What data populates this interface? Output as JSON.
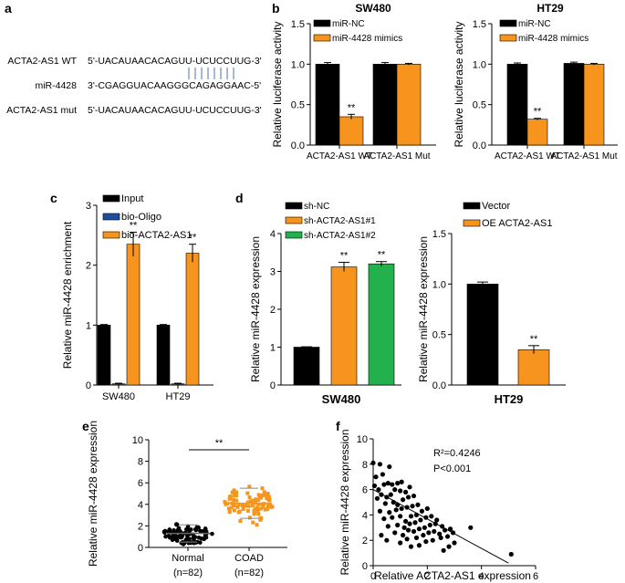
{
  "panels": {
    "a": {
      "letter": "a",
      "rows": [
        {
          "label": "ACTA2-AS1 WT",
          "seq": "5'-UACAUAACACAGUU-UCUCCUUG-3'"
        },
        {
          "label": "miR-4428",
          "seq": "3'-CGAGGUACAAGGGCAGAGGAAC-5'"
        },
        {
          "label": "ACTA2-AS1 mut",
          "seq": "5'-UACAUAACACAGUU-UCUCCUUG-3'"
        }
      ]
    },
    "b": {
      "letter": "b"
    },
    "c": {
      "letter": "c"
    },
    "d": {
      "letter": "d"
    },
    "e": {
      "letter": "e"
    },
    "f": {
      "letter": "f"
    }
  },
  "colors": {
    "black": "#000000",
    "orange": "#f7941d",
    "blue": "#1f4e9c",
    "green": "#22b14c"
  },
  "chart_data": [
    {
      "id": "b1",
      "type": "bar",
      "title": "SW480",
      "ylabel": "Relative luciferase activity",
      "ylim": [
        0,
        1.5
      ],
      "yticks": [
        "0.0",
        "0.5",
        "1.0",
        "1.5"
      ],
      "categories": [
        "ACTA2-AS1 WT",
        "ACTA2-AS1 Mut"
      ],
      "legend": "top-left",
      "series": [
        {
          "name": "miR-NC",
          "color": "#000000",
          "values": [
            1.0,
            1.0
          ],
          "errors": [
            0.02,
            0.02
          ]
        },
        {
          "name": "miR-4428 mimics",
          "color": "#f7941d",
          "values": [
            0.35,
            1.0
          ],
          "errors": [
            0.03,
            0.01
          ]
        }
      ],
      "annotations": [
        {
          "category": 0,
          "series": 1,
          "text": "**"
        }
      ]
    },
    {
      "id": "b2",
      "type": "bar",
      "title": "HT29",
      "ylabel": "Relative luciferase activity",
      "ylim": [
        0,
        1.5
      ],
      "yticks": [
        "0.0",
        "0.5",
        "1.0",
        "1.5"
      ],
      "categories": [
        "ACTA2-AS1 WT",
        "ACTA2-AS1 Mut"
      ],
      "legend": "top-left",
      "series": [
        {
          "name": "miR-NC",
          "color": "#000000",
          "values": [
            1.0,
            1.01
          ],
          "errors": [
            0.015,
            0.015
          ]
        },
        {
          "name": "miR-4428 mimics",
          "color": "#f7941d",
          "values": [
            0.32,
            1.0
          ],
          "errors": [
            0.01,
            0.01
          ]
        }
      ],
      "annotations": [
        {
          "category": 0,
          "series": 1,
          "text": "**"
        }
      ]
    },
    {
      "id": "c",
      "type": "bar",
      "title": "",
      "ylabel": "Relative miR-4428 enrichment",
      "ylim": [
        0,
        3
      ],
      "yticks": [
        "0",
        "1",
        "2",
        "3"
      ],
      "categories": [
        "SW480",
        "HT29"
      ],
      "legend": "top",
      "series": [
        {
          "name": "Input",
          "color": "#000000",
          "values": [
            1.0,
            1.0
          ],
          "errors": [
            0.01,
            0.01
          ]
        },
        {
          "name": "bio-Oligo",
          "color": "#1f4e9c",
          "values": [
            0.02,
            0.02
          ],
          "errors": [
            0.01,
            0.01
          ]
        },
        {
          "name": "bio-ACTA2-AS1",
          "color": "#f7941d",
          "values": [
            2.35,
            2.2
          ],
          "errors": [
            0.2,
            0.15
          ]
        }
      ],
      "annotations": [
        {
          "category": 0,
          "series": 2,
          "text": "**"
        },
        {
          "category": 1,
          "series": 2,
          "text": "**"
        }
      ]
    },
    {
      "id": "d1",
      "type": "bar",
      "title": "",
      "xlabel": "SW480",
      "ylabel": "Relative miR-4428 expression",
      "ylim": [
        0,
        4
      ],
      "yticks": [
        "0",
        "1",
        "2",
        "3",
        "4"
      ],
      "legend": "top-left",
      "bars": [
        {
          "name": "sh-NC",
          "color": "#000000",
          "value": 1.0,
          "error": 0.01
        },
        {
          "name": "sh-ACTA2-AS1#1",
          "color": "#f7941d",
          "value": 3.12,
          "error": 0.12,
          "mark": "**"
        },
        {
          "name": "sh-ACTA2-AS1#2",
          "color": "#22b14c",
          "value": 3.2,
          "error": 0.06,
          "mark": "**"
        }
      ]
    },
    {
      "id": "d2",
      "type": "bar",
      "title": "",
      "xlabel": "HT29",
      "ylabel": "Relative miR-4428 expression",
      "ylim": [
        0,
        1.5
      ],
      "yticks": [
        "0.0",
        "0.5",
        "1.0",
        "1.5"
      ],
      "legend": "top-left",
      "bars": [
        {
          "name": "Vector",
          "color": "#000000",
          "value": 1.0,
          "error": 0.02
        },
        {
          "name": "OE ACTA2-AS1",
          "color": "#f7941d",
          "value": 0.35,
          "error": 0.04,
          "mark": "**"
        }
      ]
    },
    {
      "id": "e",
      "type": "scatter",
      "title": "",
      "ylabel": "Relative miR-4428 expression",
      "ylim": [
        0,
        10
      ],
      "yticks": [
        "0",
        "2",
        "4",
        "6",
        "8",
        "10"
      ],
      "groups": [
        {
          "name": "Normal",
          "n": "(n=82)",
          "color": "#000000",
          "mean": 1.3,
          "sd": 0.8,
          "min": 0.1,
          "max": 4.2
        },
        {
          "name": "COAD",
          "n": "(n=82)",
          "color": "#f7941d",
          "mean": 4.1,
          "sd": 1.4,
          "min": 0.8,
          "max": 8.0
        }
      ],
      "significance": "**"
    },
    {
      "id": "f",
      "type": "scatter",
      "title": "",
      "xlabel": "Relative ACTA2-AS1 expression",
      "ylabel": "Relative miR-4428 expression",
      "xlim": [
        0,
        6
      ],
      "ylim": [
        0,
        10
      ],
      "xticks": [
        "0",
        "2",
        "4",
        "6"
      ],
      "yticks": [
        "0",
        "2",
        "4",
        "6",
        "8",
        "10"
      ],
      "r2_label": "R²=0.4246",
      "p_label": "P<0.001",
      "fit": {
        "x": [
          0,
          5.0
        ],
        "y": [
          6.0,
          0.2
        ]
      },
      "points": [
        [
          0.0,
          8.1
        ],
        [
          0.25,
          8.0
        ],
        [
          0.1,
          7.0
        ],
        [
          0.35,
          7.2
        ],
        [
          0.6,
          7.8
        ],
        [
          0.05,
          6.3
        ],
        [
          0.2,
          6.0
        ],
        [
          0.4,
          6.4
        ],
        [
          0.55,
          6.5
        ],
        [
          0.7,
          6.4
        ],
        [
          0.9,
          6.5
        ],
        [
          1.05,
          6.6
        ],
        [
          0.8,
          6.0
        ],
        [
          0.3,
          5.6
        ],
        [
          0.15,
          5.3
        ],
        [
          0.5,
          5.4
        ],
        [
          0.65,
          5.6
        ],
        [
          1.0,
          5.9
        ],
        [
          1.2,
          5.8
        ],
        [
          1.35,
          6.2
        ],
        [
          0.45,
          4.9
        ],
        [
          0.75,
          5.0
        ],
        [
          0.9,
          4.8
        ],
        [
          1.1,
          5.2
        ],
        [
          1.3,
          5.4
        ],
        [
          1.5,
          5.5
        ],
        [
          0.25,
          4.3
        ],
        [
          0.6,
          4.2
        ],
        [
          0.85,
          4.4
        ],
        [
          1.05,
          4.5
        ],
        [
          1.25,
          4.6
        ],
        [
          1.45,
          4.7
        ],
        [
          1.65,
          4.8
        ],
        [
          0.4,
          3.7
        ],
        [
          0.7,
          3.8
        ],
        [
          1.0,
          3.9
        ],
        [
          1.2,
          3.5
        ],
        [
          1.4,
          3.9
        ],
        [
          1.6,
          4.0
        ],
        [
          1.8,
          4.3
        ],
        [
          2.0,
          4.5
        ],
        [
          0.55,
          3.1
        ],
        [
          0.9,
          3.2
        ],
        [
          1.15,
          3.0
        ],
        [
          1.35,
          3.3
        ],
        [
          1.55,
          3.4
        ],
        [
          1.75,
          3.6
        ],
        [
          1.95,
          3.8
        ],
        [
          2.15,
          3.9
        ],
        [
          2.35,
          3.6
        ],
        [
          0.3,
          2.4
        ],
        [
          0.8,
          2.6
        ],
        [
          1.1,
          2.4
        ],
        [
          1.3,
          2.8
        ],
        [
          1.5,
          2.7
        ],
        [
          1.7,
          2.9
        ],
        [
          1.9,
          3.0
        ],
        [
          2.1,
          3.2
        ],
        [
          2.3,
          3.3
        ],
        [
          2.55,
          3.1
        ],
        [
          0.5,
          2.0
        ],
        [
          1.0,
          1.8
        ],
        [
          1.25,
          2.1
        ],
        [
          1.6,
          2.2
        ],
        [
          1.85,
          2.4
        ],
        [
          2.05,
          2.6
        ],
        [
          2.25,
          2.7
        ],
        [
          2.45,
          2.5
        ],
        [
          2.65,
          2.8
        ],
        [
          2.85,
          2.9
        ],
        [
          1.4,
          1.5
        ],
        [
          1.7,
          1.6
        ],
        [
          1.95,
          1.9
        ],
        [
          2.2,
          2.0
        ],
        [
          2.5,
          2.2
        ],
        [
          2.75,
          2.3
        ],
        [
          2.95,
          2.6
        ],
        [
          3.6,
          3.0
        ],
        [
          2.8,
          1.5
        ],
        [
          2.6,
          1.2
        ],
        [
          3.0,
          1.8
        ],
        [
          5.1,
          0.9
        ]
      ]
    }
  ]
}
